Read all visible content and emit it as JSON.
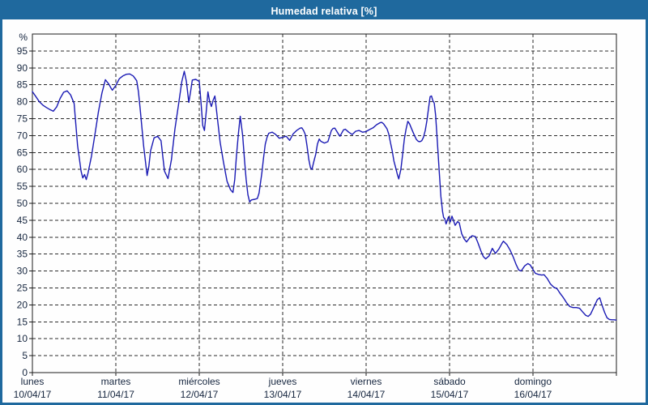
{
  "window": {
    "title": "Humedad relativa [%]"
  },
  "theme": {
    "titlebar_bg": "#1f699e",
    "window_border": "#1f699e",
    "window_bg": "#fdfdfb",
    "plot_bg": "#fefefe",
    "plot_border": "#1c1c1c",
    "grid_color": "#2b2b2b",
    "text_color": "#16263f",
    "line_color": "#1a1ab4"
  },
  "chart_data": {
    "type": "line",
    "title": "Humedad relativa [%]",
    "ylabel": "%",
    "y_unit_label": "%",
    "ylim": [
      0,
      100
    ],
    "y_ticks": [
      0,
      5,
      10,
      15,
      20,
      25,
      30,
      35,
      40,
      45,
      50,
      55,
      60,
      65,
      70,
      75,
      80,
      85,
      90,
      95
    ],
    "grid": "dashed",
    "legend": "none",
    "x_unit": "hours_from_monday_00:00",
    "x_range": [
      0,
      168
    ],
    "hours_per_day": 24,
    "x_days": [
      {
        "name": "lunes",
        "date": "10/04/17"
      },
      {
        "name": "martes",
        "date": "11/04/17"
      },
      {
        "name": "miércoles",
        "date": "12/04/17"
      },
      {
        "name": "jueves",
        "date": "13/04/17"
      },
      {
        "name": "viernes",
        "date": "14/04/17"
      },
      {
        "name": "sábado",
        "date": "15/04/17"
      },
      {
        "name": "domingo",
        "date": "16/04/17"
      }
    ],
    "series": [
      {
        "name": "Humedad relativa",
        "color": "#1a1ab4",
        "points": [
          [
            0,
            83
          ],
          [
            1,
            81.5
          ],
          [
            2,
            80
          ],
          [
            3,
            79
          ],
          [
            4,
            78.3
          ],
          [
            5,
            77.7
          ],
          [
            6,
            77.2
          ],
          [
            7,
            78.5
          ],
          [
            8,
            81
          ],
          [
            9,
            82.8
          ],
          [
            10,
            83.2
          ],
          [
            11,
            82
          ],
          [
            12,
            79.5
          ],
          [
            13,
            67
          ],
          [
            14,
            59.5
          ],
          [
            14.5,
            57.5
          ],
          [
            15,
            58.5
          ],
          [
            15.5,
            57
          ],
          [
            16,
            59
          ],
          [
            17,
            64
          ],
          [
            18,
            70.5
          ],
          [
            19,
            77
          ],
          [
            20,
            82.5
          ],
          [
            21,
            86.5
          ],
          [
            22,
            85.2
          ],
          [
            22.5,
            84.2
          ],
          [
            23,
            83.4
          ],
          [
            24,
            84.8
          ],
          [
            25,
            86.8
          ],
          [
            26,
            87.6
          ],
          [
            27,
            88.1
          ],
          [
            28,
            88.2
          ],
          [
            29,
            87.6
          ],
          [
            30,
            86.2
          ],
          [
            30.5,
            83
          ],
          [
            31,
            78
          ],
          [
            32,
            67
          ],
          [
            33,
            58.2
          ],
          [
            33.5,
            61
          ],
          [
            34,
            65.5
          ],
          [
            35,
            69.3
          ],
          [
            36,
            69.8
          ],
          [
            37,
            68.5
          ],
          [
            37.5,
            64
          ],
          [
            38,
            59.5
          ],
          [
            39,
            57.3
          ],
          [
            40,
            63
          ],
          [
            41,
            72
          ],
          [
            42,
            79
          ],
          [
            43,
            86
          ],
          [
            43.7,
            89
          ],
          [
            44.3,
            86
          ],
          [
            45,
            79.8
          ],
          [
            45.5,
            83
          ],
          [
            46,
            86.4
          ],
          [
            47,
            86.6
          ],
          [
            48,
            86
          ],
          [
            48.5,
            80
          ],
          [
            49,
            73
          ],
          [
            49.5,
            71.5
          ],
          [
            50,
            77
          ],
          [
            50.5,
            82.9
          ],
          [
            51,
            80
          ],
          [
            51.5,
            78.6
          ],
          [
            52,
            80.5
          ],
          [
            52.5,
            81.7
          ],
          [
            53,
            77
          ],
          [
            54,
            68
          ],
          [
            55,
            62
          ],
          [
            56,
            56.5
          ],
          [
            57,
            54
          ],
          [
            57.7,
            53.2
          ],
          [
            58.2,
            57
          ],
          [
            58.7,
            64
          ],
          [
            59.3,
            71
          ],
          [
            59.8,
            75.7
          ],
          [
            60.5,
            70
          ],
          [
            61,
            63
          ],
          [
            61.5,
            57
          ],
          [
            62,
            52.5
          ],
          [
            62.5,
            50.4
          ],
          [
            63,
            51
          ],
          [
            64,
            51.2
          ],
          [
            64.7,
            51.4
          ],
          [
            65.2,
            53
          ],
          [
            66,
            59
          ],
          [
            66.5,
            63.5
          ],
          [
            67,
            67.5
          ],
          [
            67.5,
            69.5
          ],
          [
            68,
            70.7
          ],
          [
            69,
            71
          ],
          [
            70,
            70.3
          ],
          [
            71,
            69.2
          ],
          [
            72,
            69.5
          ],
          [
            73,
            69.8
          ],
          [
            74,
            68.6
          ],
          [
            75,
            70.5
          ],
          [
            76,
            71.5
          ],
          [
            77,
            72.2
          ],
          [
            77.5,
            72.3
          ],
          [
            78,
            71.5
          ],
          [
            78.5,
            70.3
          ],
          [
            79,
            67
          ],
          [
            79.5,
            63
          ],
          [
            80,
            60.5
          ],
          [
            80.4,
            60
          ],
          [
            81,
            62.5
          ],
          [
            81.5,
            64.5
          ],
          [
            82,
            67.5
          ],
          [
            82.5,
            69
          ],
          [
            83,
            68.3
          ],
          [
            84,
            67.8
          ],
          [
            85,
            68.2
          ],
          [
            86,
            71.5
          ],
          [
            86.5,
            72.1
          ],
          [
            87,
            72.2
          ],
          [
            88,
            70.5
          ],
          [
            88.5,
            69.8
          ],
          [
            89,
            70.8
          ],
          [
            89.5,
            71.7
          ],
          [
            90,
            71.9
          ],
          [
            91,
            71
          ],
          [
            92,
            70.3
          ],
          [
            93,
            71.3
          ],
          [
            94,
            71.5
          ],
          [
            95,
            71
          ],
          [
            96,
            71.2
          ],
          [
            97,
            71.8
          ],
          [
            98,
            72.3
          ],
          [
            99,
            73.2
          ],
          [
            100,
            73.8
          ],
          [
            100.5,
            73.9
          ],
          [
            101,
            73.5
          ],
          [
            102,
            72
          ],
          [
            102.5,
            70.5
          ],
          [
            103,
            68
          ],
          [
            103.5,
            65.5
          ],
          [
            104,
            62.5
          ],
          [
            104.5,
            60.5
          ],
          [
            105,
            58.5
          ],
          [
            105.4,
            57.2
          ],
          [
            106,
            60
          ],
          [
            106.5,
            64.5
          ],
          [
            107,
            69
          ],
          [
            107.5,
            72
          ],
          [
            108,
            74.2
          ],
          [
            108.5,
            73.5
          ],
          [
            109,
            72.2
          ],
          [
            109.5,
            71
          ],
          [
            110,
            69.8
          ],
          [
            110.5,
            68.8
          ],
          [
            111,
            68.3
          ],
          [
            111.5,
            68.2
          ],
          [
            112,
            68.5
          ],
          [
            112.5,
            69.5
          ],
          [
            113,
            71.5
          ],
          [
            113.5,
            74.5
          ],
          [
            114,
            78.5
          ],
          [
            114.4,
            81.5
          ],
          [
            114.8,
            81.7
          ],
          [
            115.2,
            80.3
          ],
          [
            115.6,
            79.6
          ],
          [
            116,
            76
          ],
          [
            116.5,
            68
          ],
          [
            117,
            60
          ],
          [
            117.5,
            52
          ],
          [
            118,
            47.5
          ],
          [
            118.3,
            45.8
          ],
          [
            118.6,
            45.5
          ],
          [
            119,
            43.9
          ],
          [
            119.7,
            46
          ],
          [
            120.2,
            44.5
          ],
          [
            120.7,
            46.2
          ],
          [
            121.6,
            43.5
          ],
          [
            122.3,
            44.6
          ],
          [
            122.8,
            44.2
          ],
          [
            123.5,
            41
          ],
          [
            124.2,
            39.5
          ],
          [
            124.9,
            38.6
          ],
          [
            125.8,
            39.8
          ],
          [
            126.5,
            40.4
          ],
          [
            127.4,
            40.2
          ],
          [
            128.1,
            38.5
          ],
          [
            129,
            36
          ],
          [
            129.7,
            34.3
          ],
          [
            130.4,
            33.6
          ],
          [
            131.4,
            34.5
          ],
          [
            132.3,
            36.7
          ],
          [
            133.2,
            35.2
          ],
          [
            134.2,
            36.5
          ],
          [
            135.1,
            38.2
          ],
          [
            135.5,
            38.8
          ],
          [
            136.5,
            37.8
          ],
          [
            137.4,
            36.2
          ],
          [
            138.3,
            34.2
          ],
          [
            139.2,
            31.8
          ],
          [
            139.9,
            30.3
          ],
          [
            140.6,
            30
          ],
          [
            141.6,
            31.5
          ],
          [
            142.5,
            32.2
          ],
          [
            143.2,
            31.8
          ],
          [
            144,
            30.4
          ],
          [
            144.7,
            29.3
          ],
          [
            145.6,
            29
          ],
          [
            146.5,
            28.8
          ],
          [
            147.2,
            28.9
          ],
          [
            148.1,
            27.8
          ],
          [
            149,
            26.2
          ],
          [
            150,
            25.2
          ],
          [
            150.9,
            24.8
          ],
          [
            151.8,
            23.4
          ],
          [
            152.7,
            22.2
          ],
          [
            153.7,
            20.6
          ],
          [
            154.6,
            19.5
          ],
          [
            155.5,
            19.2
          ],
          [
            156.5,
            19.2
          ],
          [
            157.4,
            19
          ],
          [
            158.3,
            17.9
          ],
          [
            159.2,
            16.9
          ],
          [
            159.9,
            16.6
          ],
          [
            160.6,
            17.3
          ],
          [
            161.6,
            19.5
          ],
          [
            162.5,
            21.5
          ],
          [
            163.2,
            22.1
          ],
          [
            163.9,
            19.8
          ],
          [
            164.6,
            17.8
          ],
          [
            165.3,
            16.2
          ],
          [
            166,
            15.7
          ],
          [
            166.7,
            15.6
          ],
          [
            167.4,
            15.6
          ],
          [
            167.9,
            15.5
          ]
        ]
      }
    ]
  }
}
